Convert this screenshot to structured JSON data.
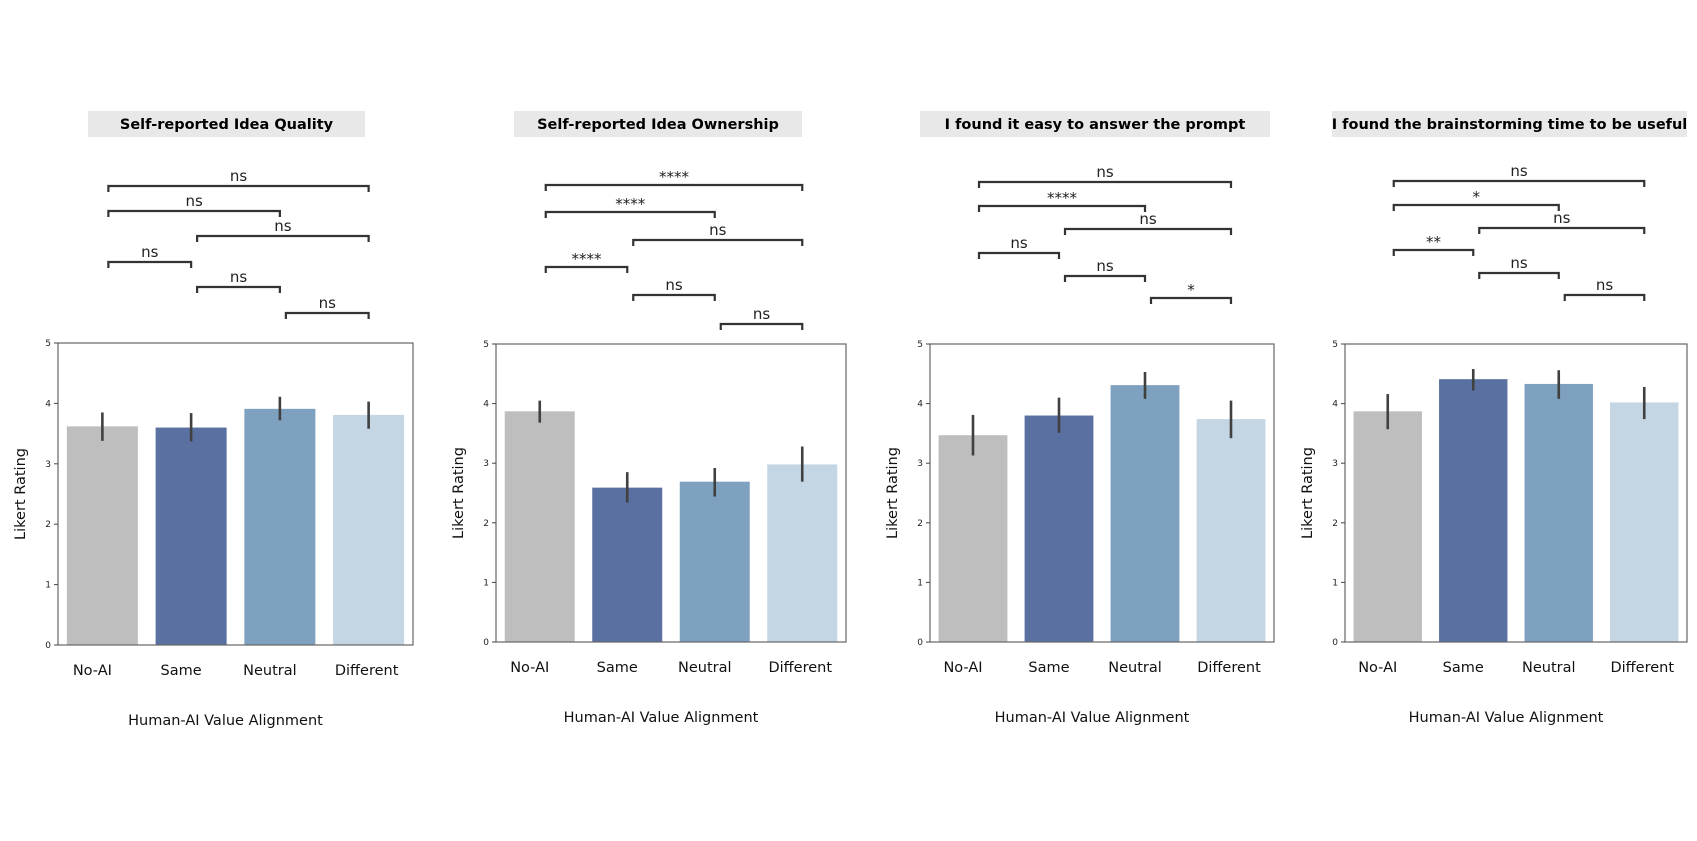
{
  "chart_data": [
    {
      "type": "bar",
      "title": "Self-reported Idea Quality",
      "categories": [
        "No-AI",
        "Same",
        "Neutral",
        "Different"
      ],
      "values": [
        3.62,
        3.6,
        3.91,
        3.81
      ],
      "ci": [
        [
          3.38,
          3.85
        ],
        [
          3.37,
          3.84
        ],
        [
          3.72,
          4.11
        ],
        [
          3.58,
          4.03
        ]
      ],
      "colors": [
        "#bebebe",
        "#5a70a0",
        "#7ea1bf",
        "#c4d6e3"
      ],
      "xlabel": "Human-AI Value Alignment",
      "ylabel": "Likert Rating",
      "ylim": [
        0,
        5
      ],
      "yticks": [
        "0",
        "1",
        "2",
        "3",
        "4",
        "5"
      ],
      "significance": [
        {
          "pair": [
            "No-AI",
            "Different"
          ],
          "label": "ns"
        },
        {
          "pair": [
            "No-AI",
            "Neutral"
          ],
          "label": "ns"
        },
        {
          "pair": [
            "Same",
            "Different"
          ],
          "label": "ns"
        },
        {
          "pair": [
            "No-AI",
            "Same"
          ],
          "label": "ns"
        },
        {
          "pair": [
            "Same",
            "Neutral"
          ],
          "label": "ns"
        },
        {
          "pair": [
            "Neutral",
            "Different"
          ],
          "label": "ns"
        }
      ]
    },
    {
      "type": "bar",
      "title": "Self-reported Idea Ownership",
      "categories": [
        "No-AI",
        "Same",
        "Neutral",
        "Different"
      ],
      "values": [
        3.87,
        2.59,
        2.69,
        2.98
      ],
      "ci": [
        [
          3.68,
          4.05
        ],
        [
          2.34,
          2.85
        ],
        [
          2.44,
          2.92
        ],
        [
          2.69,
          3.28
        ]
      ],
      "colors": [
        "#bebebe",
        "#5a70a0",
        "#7ea1bf",
        "#c4d6e3"
      ],
      "xlabel": "Human-AI Value Alignment",
      "ylabel": "Likert Rating",
      "ylim": [
        0,
        5
      ],
      "yticks": [
        "0",
        "1",
        "2",
        "3",
        "4",
        "5"
      ],
      "significance": [
        {
          "pair": [
            "No-AI",
            "Different"
          ],
          "label": "****"
        },
        {
          "pair": [
            "No-AI",
            "Neutral"
          ],
          "label": "****"
        },
        {
          "pair": [
            "Same",
            "Different"
          ],
          "label": "ns"
        },
        {
          "pair": [
            "No-AI",
            "Same"
          ],
          "label": "****"
        },
        {
          "pair": [
            "Same",
            "Neutral"
          ],
          "label": "ns"
        },
        {
          "pair": [
            "Neutral",
            "Different"
          ],
          "label": "ns"
        }
      ]
    },
    {
      "type": "bar",
      "title": "I found it easy to answer the prompt",
      "categories": [
        "No-AI",
        "Same",
        "Neutral",
        "Different"
      ],
      "values": [
        3.47,
        3.8,
        4.31,
        3.74
      ],
      "ci": [
        [
          3.13,
          3.81
        ],
        [
          3.51,
          4.1
        ],
        [
          4.08,
          4.53
        ],
        [
          3.42,
          4.05
        ]
      ],
      "colors": [
        "#bebebe",
        "#5a70a0",
        "#7ea1bf",
        "#c4d6e3"
      ],
      "xlabel": "Human-AI Value Alignment",
      "ylabel": "Likert Rating",
      "ylim": [
        0,
        5
      ],
      "yticks": [
        "0",
        "1",
        "2",
        "3",
        "4",
        "5"
      ],
      "significance": [
        {
          "pair": [
            "No-AI",
            "Different"
          ],
          "label": "ns"
        },
        {
          "pair": [
            "No-AI",
            "Neutral"
          ],
          "label": "****"
        },
        {
          "pair": [
            "Same",
            "Different"
          ],
          "label": "ns"
        },
        {
          "pair": [
            "No-AI",
            "Same"
          ],
          "label": "ns"
        },
        {
          "pair": [
            "Same",
            "Neutral"
          ],
          "label": "ns"
        },
        {
          "pair": [
            "Neutral",
            "Different"
          ],
          "label": "*"
        }
      ]
    },
    {
      "type": "bar",
      "title": "I found the brainstorming time to be useful",
      "categories": [
        "No-AI",
        "Same",
        "Neutral",
        "Different"
      ],
      "values": [
        3.87,
        4.41,
        4.33,
        4.02
      ],
      "ci": [
        [
          3.57,
          4.16
        ],
        [
          4.22,
          4.58
        ],
        [
          4.08,
          4.56
        ],
        [
          3.74,
          4.28
        ]
      ],
      "colors": [
        "#bebebe",
        "#5a70a0",
        "#7ea1bf",
        "#c4d6e3"
      ],
      "xlabel": "Human-AI Value Alignment",
      "ylabel": "Likert Rating",
      "ylim": [
        0,
        5
      ],
      "yticks": [
        "0",
        "1",
        "2",
        "3",
        "4",
        "5"
      ],
      "significance": [
        {
          "pair": [
            "No-AI",
            "Different"
          ],
          "label": "ns"
        },
        {
          "pair": [
            "No-AI",
            "Neutral"
          ],
          "label": "*"
        },
        {
          "pair": [
            "Same",
            "Different"
          ],
          "label": "ns"
        },
        {
          "pair": [
            "No-AI",
            "Same"
          ],
          "label": "**"
        },
        {
          "pair": [
            "Same",
            "Neutral"
          ],
          "label": "ns"
        },
        {
          "pair": [
            "Neutral",
            "Different"
          ],
          "label": "ns"
        }
      ]
    }
  ]
}
